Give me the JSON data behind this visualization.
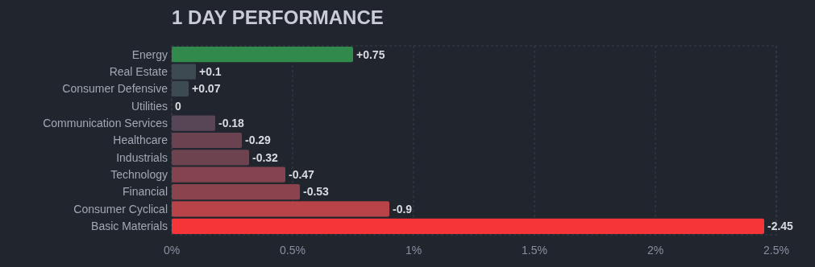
{
  "chart_data": {
    "type": "bar",
    "orientation": "horizontal",
    "title": "1 DAY PERFORMANCE",
    "categories": [
      "Energy",
      "Real Estate",
      "Consumer Defensive",
      "Utilities",
      "Communication Services",
      "Healthcare",
      "Industrials",
      "Technology",
      "Financial",
      "Consumer Cyclical",
      "Basic Materials"
    ],
    "values": [
      0.75,
      0.1,
      0.07,
      0,
      -0.18,
      -0.29,
      -0.32,
      -0.47,
      -0.53,
      -0.9,
      -2.45
    ],
    "base": [
      0,
      0,
      0,
      null,
      0.18,
      0.29,
      0.32,
      0.47,
      0.53,
      0.9,
      2.45
    ],
    "value_labels": [
      "+0.75",
      "+0.1",
      "+0.07",
      "0",
      "-0.18",
      "-0.29",
      "-0.32",
      "-0.47",
      "-0.53",
      "-0.9",
      "-2.45"
    ],
    "colors": [
      "#318a4c",
      "#3d4a52",
      "#3d4a52",
      "#3d4a52",
      "#584556",
      "#6b4350",
      "#6e4350",
      "#83444f",
      "#8b434d",
      "#b84449",
      "#f63539"
    ],
    "xlim": [
      0,
      2.5
    ],
    "xticks": [
      {
        "value": 0,
        "label": "0%"
      },
      {
        "value": 0.5,
        "label": "0.5%"
      },
      {
        "value": 1,
        "label": "1%"
      },
      {
        "value": 1.5,
        "label": "1.5%"
      },
      {
        "value": 2,
        "label": "2%"
      },
      {
        "value": 2.5,
        "label": "2.5%"
      }
    ],
    "grid": "x"
  }
}
